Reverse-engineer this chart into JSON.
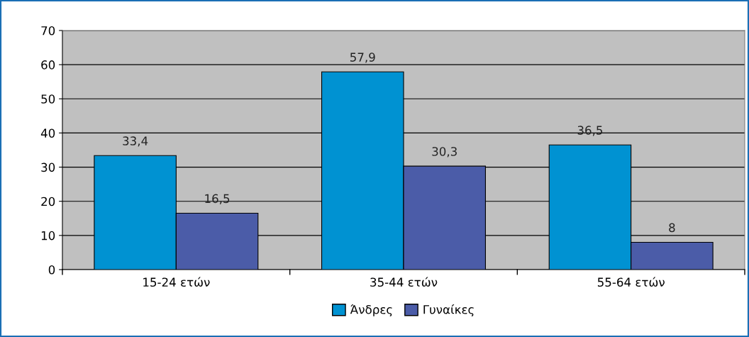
{
  "chart_data": {
    "type": "bar",
    "categories": [
      "15-24 ετών",
      "35-44 ετών",
      "55-64 ετών"
    ],
    "series": [
      {
        "name": "Άνδρες",
        "color": "#0092d2",
        "values": [
          33.4,
          57.9,
          36.5
        ],
        "value_labels": [
          "33,4",
          "57,9",
          "36,5"
        ]
      },
      {
        "name": "Γυναίκες",
        "color": "#4b5ca8",
        "values": [
          16.5,
          30.3,
          8
        ],
        "value_labels": [
          "16,5",
          "30,3",
          "8"
        ]
      }
    ],
    "ylim": [
      0,
      70
    ],
    "yticks": [
      0,
      10,
      20,
      30,
      40,
      50,
      60,
      70
    ],
    "grid": "y",
    "legend": "bottom"
  }
}
